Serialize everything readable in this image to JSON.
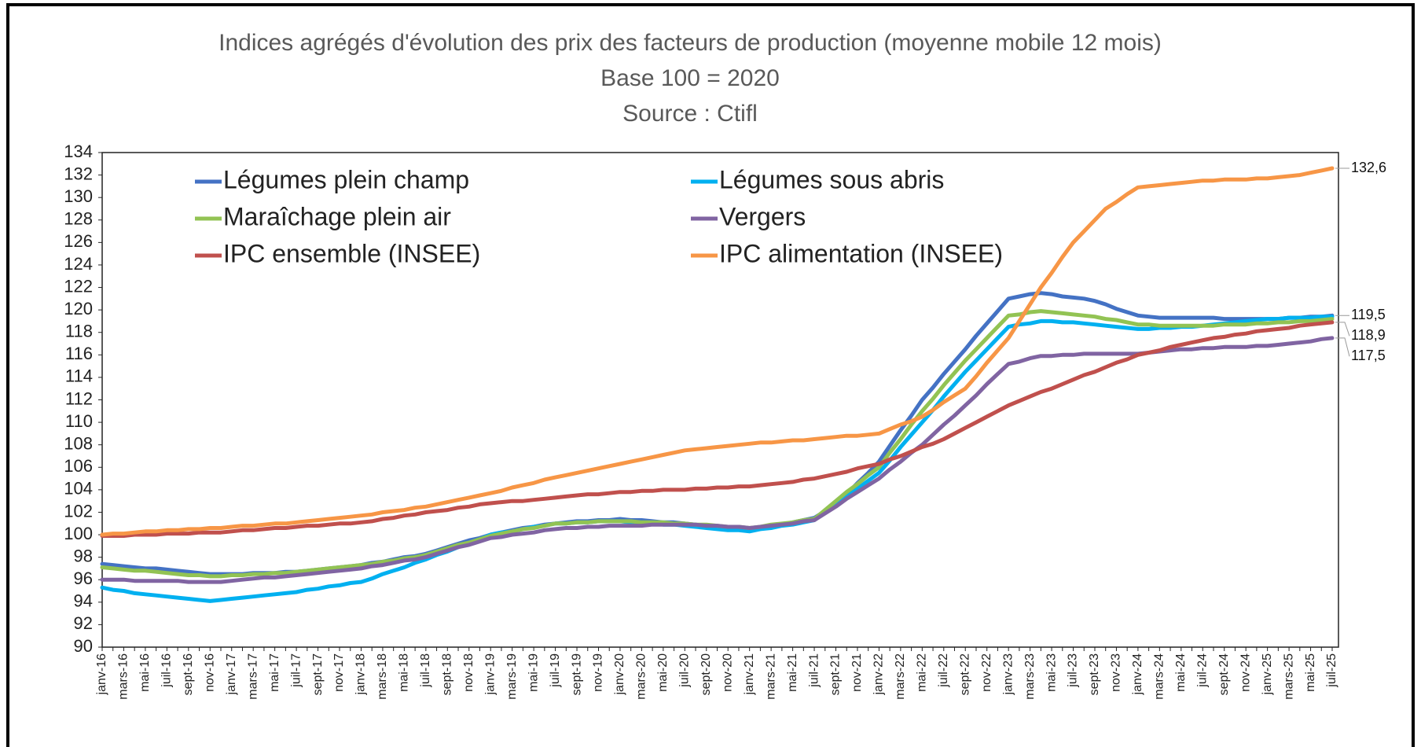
{
  "chart_data": {
    "type": "line",
    "title": "Indices agrégés d'évolution des prix des facteurs de production (moyenne mobile 12 mois)",
    "subtitle": "Base 100 = 2020",
    "source": "Source : Ctifl",
    "categories": [
      "janv-16",
      null,
      "mars-16",
      null,
      "mai-16",
      null,
      "juil-16",
      null,
      "sept-16",
      null,
      "nov-16",
      null,
      "janv-17",
      null,
      "mars-17",
      null,
      "mai-17",
      null,
      "juil-17",
      null,
      "sept-17",
      null,
      "nov-17",
      null,
      "janv-18",
      null,
      "mars-18",
      null,
      "mai-18",
      null,
      "juil-18",
      null,
      "sept-18",
      null,
      "nov-18",
      null,
      "janv-19",
      null,
      "mars-19",
      null,
      "mai-19",
      null,
      "juil-19",
      null,
      "sept-19",
      null,
      "nov-19",
      null,
      "janv-20",
      null,
      "mars-20",
      null,
      "mai-20",
      null,
      "juil-20",
      null,
      "sept-20",
      null,
      "nov-20",
      null,
      "janv-21",
      null,
      "mars-21",
      null,
      "mai-21",
      null,
      "juil-21",
      null,
      "sept-21",
      null,
      "nov-21",
      null,
      "janv-22",
      null,
      "mars-22",
      null,
      "mai-22",
      null,
      "juil-22",
      null,
      "sept-22",
      null,
      "nov-22",
      null,
      "janv-23",
      null,
      "mars-23",
      null,
      "mai-23",
      null,
      "juil-23",
      null,
      "sept-23",
      null,
      "nov-23",
      null,
      "janv-24",
      null,
      "mars-24",
      null,
      "mai-24",
      null,
      "juil-24",
      null,
      "sept-24",
      null,
      "nov-24",
      null,
      "janv-25",
      null,
      "mars-25",
      null,
      "mai-25",
      null,
      "juil-25"
    ],
    "series": [
      {
        "name": "Légumes plein champ",
        "color": "#4472c4",
        "end_label": "119,5",
        "values": [
          97.4,
          97.3,
          97.2,
          97.1,
          97.0,
          97.0,
          96.9,
          96.8,
          96.7,
          96.6,
          96.5,
          96.5,
          96.5,
          96.5,
          96.6,
          96.6,
          96.6,
          96.7,
          96.7,
          96.8,
          96.9,
          97.0,
          97.1,
          97.2,
          97.3,
          97.5,
          97.6,
          97.8,
          98.0,
          98.1,
          98.3,
          98.6,
          98.9,
          99.2,
          99.5,
          99.7,
          100.0,
          100.2,
          100.4,
          100.6,
          100.7,
          100.9,
          101.0,
          101.1,
          101.2,
          101.2,
          101.3,
          101.3,
          101.4,
          101.3,
          101.3,
          101.2,
          101.1,
          101.1,
          101.0,
          100.9,
          100.8,
          100.7,
          100.6,
          100.6,
          100.5,
          100.6,
          100.8,
          100.9,
          101.1,
          101.3,
          101.5,
          102.1,
          102.8,
          103.6,
          104.6,
          105.5,
          106.5,
          107.9,
          109.3,
          110.6,
          112.0,
          113.1,
          114.3,
          115.4,
          116.5,
          117.7,
          118.8,
          119.9,
          121.0,
          121.2,
          121.4,
          121.5,
          121.4,
          121.2,
          121.1,
          121.0,
          120.8,
          120.5,
          120.1,
          119.8,
          119.5,
          119.4,
          119.3,
          119.3,
          119.3,
          119.3,
          119.3,
          119.3,
          119.2,
          119.2,
          119.2,
          119.2,
          119.2,
          119.2,
          119.3,
          119.3,
          119.4,
          119.4,
          119.5
        ]
      },
      {
        "name": "Légumes sous abris",
        "color": "#00b0f0",
        "values": [
          95.3,
          95.1,
          95.0,
          94.8,
          94.7,
          94.6,
          94.5,
          94.4,
          94.3,
          94.2,
          94.1,
          94.2,
          94.3,
          94.4,
          94.5,
          94.6,
          94.7,
          94.8,
          94.9,
          95.1,
          95.2,
          95.4,
          95.5,
          95.7,
          95.8,
          96.1,
          96.5,
          96.8,
          97.1,
          97.5,
          97.8,
          98.2,
          98.5,
          98.9,
          99.3,
          99.6,
          100.0,
          100.2,
          100.3,
          100.5,
          100.7,
          100.8,
          101.0,
          101.0,
          101.1,
          101.1,
          101.2,
          101.2,
          101.2,
          101.1,
          101.1,
          101.0,
          100.9,
          100.9,
          100.8,
          100.7,
          100.6,
          100.5,
          100.4,
          100.4,
          100.3,
          100.5,
          100.6,
          100.8,
          100.9,
          101.1,
          101.3,
          102.0,
          102.7,
          103.4,
          104.1,
          104.8,
          105.5,
          106.6,
          107.8,
          108.9,
          110.0,
          111.1,
          112.3,
          113.4,
          114.5,
          115.5,
          116.5,
          117.5,
          118.5,
          118.7,
          118.8,
          119.0,
          119.0,
          118.9,
          118.9,
          118.8,
          118.7,
          118.6,
          118.5,
          118.4,
          118.3,
          118.3,
          118.4,
          118.4,
          118.5,
          118.5,
          118.6,
          118.7,
          118.8,
          118.9,
          119.0,
          119.1,
          119.2,
          119.2,
          119.3,
          119.3,
          119.3,
          119.4,
          119.4
        ]
      },
      {
        "name": "Maraîchage plein air",
        "color": "#92c353",
        "values": [
          97.1,
          97.0,
          96.9,
          96.8,
          96.8,
          96.7,
          96.6,
          96.5,
          96.4,
          96.4,
          96.3,
          96.3,
          96.4,
          96.4,
          96.5,
          96.5,
          96.6,
          96.6,
          96.7,
          96.8,
          96.9,
          97.0,
          97.1,
          97.2,
          97.3,
          97.4,
          97.6,
          97.7,
          97.9,
          98.0,
          98.2,
          98.5,
          98.8,
          99.1,
          99.3,
          99.6,
          99.9,
          100.1,
          100.3,
          100.5,
          100.6,
          100.8,
          101.0,
          101.0,
          101.1,
          101.1,
          101.2,
          101.2,
          101.2,
          101.2,
          101.1,
          101.1,
          101.1,
          101.0,
          101.0,
          100.9,
          100.9,
          100.8,
          100.7,
          100.7,
          100.6,
          100.7,
          100.9,
          101.0,
          101.1,
          101.3,
          101.4,
          102.2,
          103.0,
          103.8,
          104.5,
          105.3,
          106.0,
          107.3,
          108.5,
          109.8,
          111.0,
          112.1,
          113.3,
          114.4,
          115.5,
          116.5,
          117.5,
          118.5,
          119.5,
          119.6,
          119.8,
          119.9,
          119.8,
          119.7,
          119.6,
          119.5,
          119.4,
          119.2,
          119.1,
          118.9,
          118.7,
          118.7,
          118.6,
          118.6,
          118.6,
          118.6,
          118.6,
          118.6,
          118.7,
          118.7,
          118.7,
          118.8,
          118.8,
          118.9,
          118.9,
          119.0,
          119.0,
          119.1,
          119.2
        ]
      },
      {
        "name": "Vergers",
        "color": "#8064a2",
        "end_label": "117,5",
        "values": [
          96.0,
          96.0,
          96.0,
          95.9,
          95.9,
          95.9,
          95.9,
          95.9,
          95.8,
          95.8,
          95.8,
          95.8,
          95.9,
          96.0,
          96.1,
          96.2,
          96.2,
          96.3,
          96.4,
          96.5,
          96.6,
          96.7,
          96.8,
          96.9,
          97.0,
          97.2,
          97.3,
          97.5,
          97.7,
          97.8,
          98.0,
          98.3,
          98.6,
          98.9,
          99.1,
          99.4,
          99.7,
          99.8,
          100.0,
          100.1,
          100.2,
          100.4,
          100.5,
          100.6,
          100.6,
          100.7,
          100.7,
          100.8,
          100.8,
          100.8,
          100.8,
          100.9,
          100.9,
          100.9,
          100.9,
          100.9,
          100.8,
          100.8,
          100.7,
          100.7,
          100.6,
          100.7,
          100.8,
          100.9,
          101.0,
          101.2,
          101.3,
          101.9,
          102.5,
          103.2,
          103.8,
          104.4,
          105.0,
          105.8,
          106.5,
          107.3,
          108.0,
          108.9,
          109.8,
          110.6,
          111.5,
          112.4,
          113.4,
          114.3,
          115.2,
          115.4,
          115.7,
          115.9,
          115.9,
          116.0,
          116.0,
          116.1,
          116.1,
          116.1,
          116.1,
          116.1,
          116.1,
          116.2,
          116.3,
          116.4,
          116.5,
          116.5,
          116.6,
          116.6,
          116.7,
          116.7,
          116.7,
          116.8,
          116.8,
          116.9,
          117.0,
          117.1,
          117.2,
          117.4,
          117.5
        ]
      },
      {
        "name": "IPC  ensemble (INSEE)",
        "color": "#c0504d",
        "end_label": "118,9",
        "values": [
          99.9,
          99.9,
          99.9,
          100.0,
          100.0,
          100.0,
          100.1,
          100.1,
          100.1,
          100.2,
          100.2,
          100.2,
          100.3,
          100.4,
          100.4,
          100.5,
          100.6,
          100.6,
          100.7,
          100.8,
          100.8,
          100.9,
          101.0,
          101.0,
          101.1,
          101.2,
          101.4,
          101.5,
          101.7,
          101.8,
          102.0,
          102.1,
          102.2,
          102.4,
          102.5,
          102.7,
          102.8,
          102.9,
          103.0,
          103.0,
          103.1,
          103.2,
          103.3,
          103.4,
          103.5,
          103.6,
          103.6,
          103.7,
          103.8,
          103.8,
          103.9,
          103.9,
          104.0,
          104.0,
          104.0,
          104.1,
          104.1,
          104.2,
          104.2,
          104.3,
          104.3,
          104.4,
          104.5,
          104.6,
          104.7,
          104.9,
          105.0,
          105.2,
          105.4,
          105.6,
          105.9,
          106.1,
          106.3,
          106.7,
          107.0,
          107.4,
          107.8,
          108.1,
          108.5,
          109.0,
          109.5,
          110.0,
          110.5,
          111.0,
          111.5,
          111.9,
          112.3,
          112.7,
          113.0,
          113.4,
          113.8,
          114.2,
          114.5,
          114.9,
          115.3,
          115.6,
          116.0,
          116.2,
          116.4,
          116.7,
          116.9,
          117.1,
          117.3,
          117.5,
          117.6,
          117.8,
          117.9,
          118.1,
          118.2,
          118.3,
          118.4,
          118.6,
          118.7,
          118.8,
          118.9
        ]
      },
      {
        "name": "IPC alimentation (INSEE)",
        "color": "#f79646",
        "end_label": "132,6",
        "values": [
          100.0,
          100.1,
          100.1,
          100.2,
          100.3,
          100.3,
          100.4,
          100.4,
          100.5,
          100.5,
          100.6,
          100.6,
          100.7,
          100.8,
          100.8,
          100.9,
          101.0,
          101.0,
          101.1,
          101.2,
          101.3,
          101.4,
          101.5,
          101.6,
          101.7,
          101.8,
          102.0,
          102.1,
          102.2,
          102.4,
          102.5,
          102.7,
          102.9,
          103.1,
          103.3,
          103.5,
          103.7,
          103.9,
          104.2,
          104.4,
          104.6,
          104.9,
          105.1,
          105.3,
          105.5,
          105.7,
          105.9,
          106.1,
          106.3,
          106.5,
          106.7,
          106.9,
          107.1,
          107.3,
          107.5,
          107.6,
          107.7,
          107.8,
          107.9,
          108.0,
          108.1,
          108.2,
          108.2,
          108.3,
          108.4,
          108.4,
          108.5,
          108.6,
          108.7,
          108.8,
          108.8,
          108.9,
          109.0,
          109.4,
          109.8,
          110.1,
          110.5,
          111.1,
          111.8,
          112.4,
          113.0,
          114.1,
          115.3,
          116.4,
          117.5,
          119.0,
          120.5,
          122.0,
          123.3,
          124.7,
          126.0,
          127.0,
          128.0,
          129.0,
          129.6,
          130.3,
          130.9,
          131.0,
          131.1,
          131.2,
          131.3,
          131.4,
          131.5,
          131.5,
          131.6,
          131.6,
          131.6,
          131.7,
          131.7,
          131.8,
          131.9,
          132.0,
          132.2,
          132.4,
          132.6
        ]
      }
    ],
    "ylim": [
      90,
      134
    ],
    "yticks": [
      90,
      92,
      94,
      96,
      98,
      100,
      102,
      104,
      106,
      108,
      110,
      112,
      114,
      116,
      118,
      120,
      122,
      124,
      126,
      128,
      130,
      132,
      134
    ],
    "grid": false,
    "legend": "top"
  }
}
